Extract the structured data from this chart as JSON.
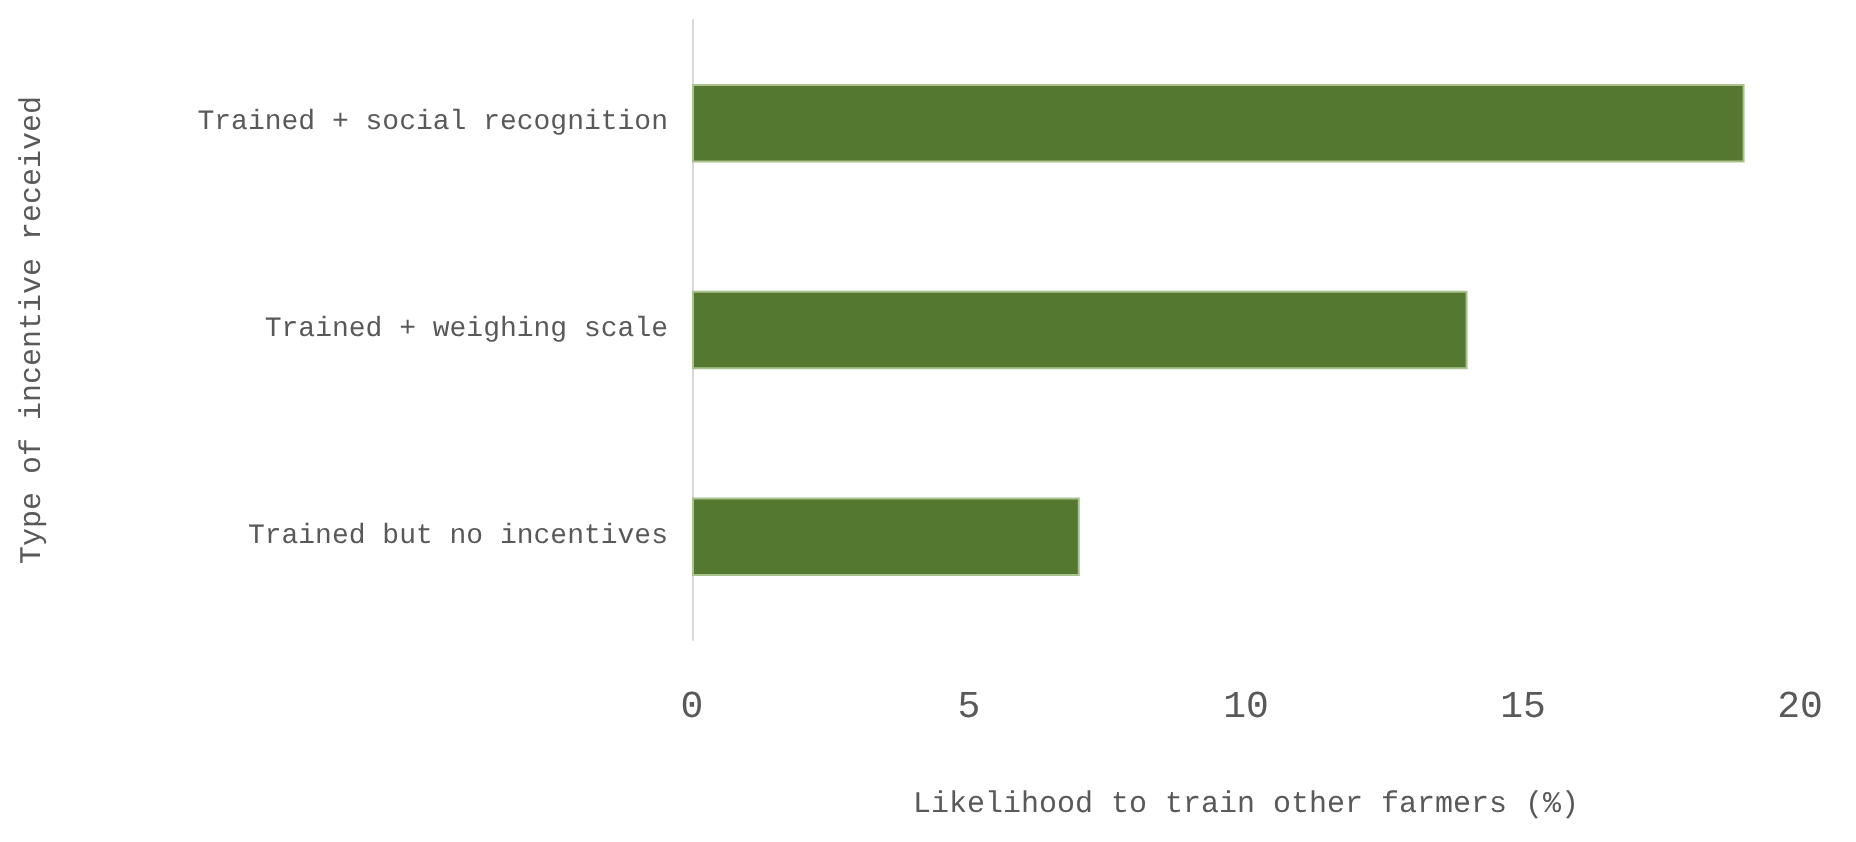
{
  "chart_data": {
    "type": "bar",
    "orientation": "horizontal",
    "xlabel": "Likelihood to train other farmers (%)",
    "ylabel": "Type of incentive received",
    "categories": [
      "Trained + social recognition",
      "Trained + weighing scale",
      "Trained but no incentives"
    ],
    "series": [
      {
        "color": "#54782f",
        "values": [
          19,
          14,
          7
        ]
      }
    ],
    "xlim": [
      0,
      20
    ],
    "xticks": [
      0,
      5,
      10,
      15,
      20
    ],
    "grid": false
  }
}
